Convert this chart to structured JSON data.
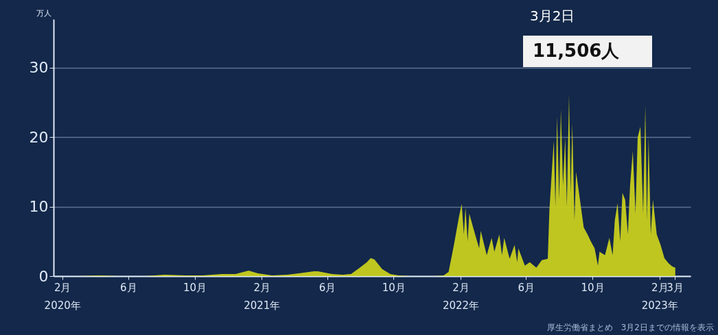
{
  "chart_data": {
    "type": "area",
    "ylabel": "万人",
    "annotations": [
      "3月2日",
      "11,506人",
      "厚生労働省まとめ　3月2日までの情報を表示"
    ],
    "x": [
      "2020-01-16",
      "2020-03-01",
      "2020-04-11",
      "2020-05-15",
      "2020-07-01",
      "2020-08-07",
      "2020-09-15",
      "2020-10-15",
      "2020-11-20",
      "2020-12-15",
      "2021-01-08",
      "2021-01-25",
      "2021-02-20",
      "2021-03-20",
      "2021-04-10",
      "2021-05-08",
      "2021-05-15",
      "2021-06-10",
      "2021-06-30",
      "2021-07-15",
      "2021-07-31",
      "2021-08-13",
      "2021-08-20",
      "2021-08-27",
      "2021-09-10",
      "2021-09-25",
      "2021-10-10",
      "2021-11-01",
      "2021-12-15",
      "2022-01-01",
      "2022-01-10",
      "2022-01-20",
      "2022-01-29",
      "2022-02-03",
      "2022-02-07",
      "2022-02-10",
      "2022-02-14",
      "2022-02-17",
      "2022-02-24",
      "2022-03-07",
      "2022-03-10",
      "2022-03-21",
      "2022-03-30",
      "2022-04-04",
      "2022-04-13",
      "2022-04-18",
      "2022-04-22",
      "2022-05-02",
      "2022-05-11",
      "2022-05-16",
      "2022-05-18",
      "2022-05-30",
      "2022-06-08",
      "2022-06-20",
      "2022-06-30",
      "2022-07-11",
      "2022-07-14",
      "2022-07-22",
      "2022-07-25",
      "2022-07-28",
      "2022-08-01",
      "2022-08-04",
      "2022-08-08",
      "2022-08-12",
      "2022-08-15",
      "2022-08-19",
      "2022-08-22",
      "2022-08-25",
      "2022-08-29",
      "2022-09-01",
      "2022-09-08",
      "2022-09-15",
      "2022-09-22",
      "2022-09-28",
      "2022-10-05",
      "2022-10-11",
      "2022-10-14",
      "2022-10-24",
      "2022-11-01",
      "2022-11-07",
      "2022-11-11",
      "2022-11-16",
      "2022-11-21",
      "2022-11-25",
      "2022-11-30",
      "2022-12-05",
      "2022-12-09",
      "2022-12-14",
      "2022-12-19",
      "2022-12-23",
      "2022-12-28",
      "2023-01-02",
      "2023-01-06",
      "2023-01-09",
      "2023-01-12",
      "2023-01-16",
      "2023-01-20",
      "2023-01-27",
      "2023-02-03",
      "2023-02-10",
      "2023-02-17",
      "2023-02-24",
      "2023-03-02"
    ],
    "series": [
      {
        "color": "#c8cf1e",
        "values": [
          0,
          0,
          0.1,
          0,
          0,
          0.2,
          0.1,
          0.1,
          0.3,
          0.3,
          0.8,
          0.4,
          0.1,
          0.2,
          0.4,
          0.7,
          0.7,
          0.3,
          0.2,
          0.3,
          1.2,
          2.0,
          2.6,
          2.4,
          1.0,
          0.3,
          0.1,
          0,
          0,
          0.1,
          0.6,
          4.6,
          8.5,
          10.4,
          6.0,
          9.9,
          5.0,
          9.0,
          7.0,
          4.0,
          6.5,
          3.0,
          5.5,
          3.5,
          6.0,
          3.0,
          5.5,
          2.5,
          4.5,
          2.0,
          4.0,
          1.5,
          2.0,
          1.2,
          2.3,
          2.5,
          9.5,
          19.5,
          10.0,
          23.0,
          11.0,
          24.0,
          13.0,
          20.0,
          10.0,
          26.1,
          12.0,
          22.0,
          8.0,
          15.0,
          11.0,
          7.0,
          6.0,
          5.0,
          4.0,
          1.5,
          3.5,
          3.0,
          5.5,
          3.0,
          8.0,
          10.5,
          5.0,
          12.0,
          11.0,
          6.0,
          13.0,
          18.0,
          9.0,
          20.0,
          21.5,
          9.0,
          24.6,
          8.0,
          20.0,
          6.0,
          11.0,
          6.0,
          4.5,
          2.6,
          1.9,
          1.4,
          1.2
        ]
      }
    ],
    "xlim": [
      "2020-01-16",
      "2023-03-30"
    ],
    "xticks": [
      {
        "value": "2020-02",
        "label": "2月\n2020年"
      },
      {
        "value": "2020-06",
        "label": "6月"
      },
      {
        "value": "2020-10",
        "label": "10月"
      },
      {
        "value": "2021-02",
        "label": "2月\n2021年"
      },
      {
        "value": "2021-06",
        "label": "6月"
      },
      {
        "value": "2021-10",
        "label": "10月"
      },
      {
        "value": "2022-02",
        "label": "2月\n2022年"
      },
      {
        "value": "2022-06",
        "label": "6月"
      },
      {
        "value": "2022-10",
        "label": "10月"
      },
      {
        "value": "2023-02",
        "label": "2月\n2023年"
      },
      {
        "value": "2023-03",
        "label": "3月"
      }
    ],
    "ylim": [
      0,
      37
    ],
    "yticks": [
      0,
      10,
      20,
      30
    ],
    "grid": "y"
  }
}
